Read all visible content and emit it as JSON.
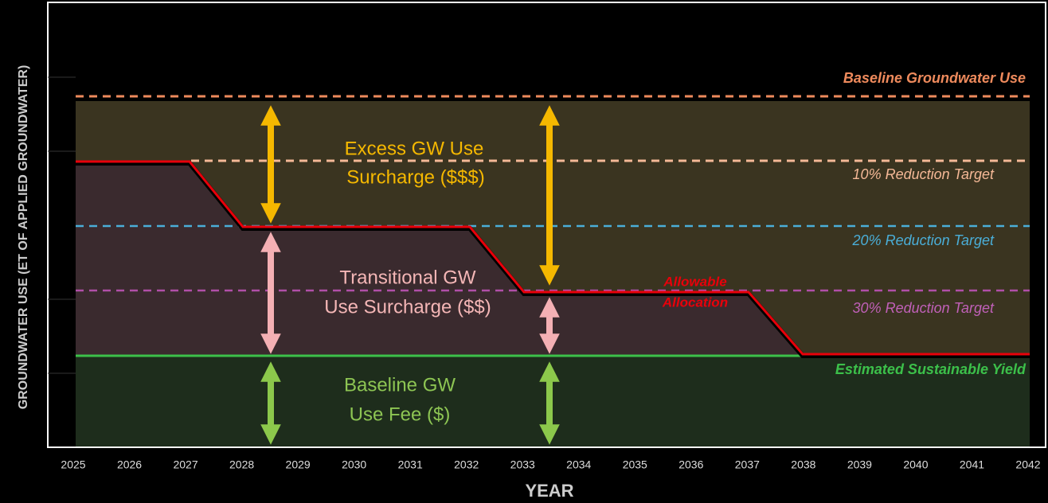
{
  "y_axis_label": "GROUNDWATER USE (ET OF APPLIED GROUNDWATER)",
  "x_axis_label": "YEAR",
  "years": [
    "2025",
    "2026",
    "2027",
    "2028",
    "2029",
    "2030",
    "2031",
    "2032",
    "2033",
    "2034",
    "2035",
    "2036",
    "2037",
    "2038",
    "2039",
    "2040",
    "2041",
    "2042"
  ],
  "reference_lines": {
    "baseline": "Baseline Groundwater Use",
    "reduction_10": "10% Reduction Target",
    "reduction_20": "20% Reduction Target",
    "reduction_30": "30% Reduction Target",
    "sustainable_yield": "Estimated Sustainable Yield"
  },
  "regions": {
    "excess": [
      "Excess GW Use",
      "Surcharge  ($$$)"
    ],
    "transitional": [
      "Transitional GW",
      "Use Surcharge ($$)"
    ],
    "baseline_fee": [
      "Baseline GW",
      "Use Fee ($)"
    ]
  },
  "allocation_label": [
    "Allowable",
    "Allocation"
  ]
}
